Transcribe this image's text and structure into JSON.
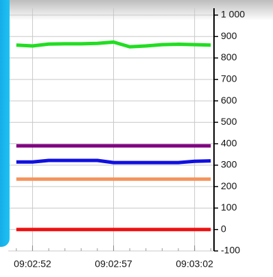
{
  "chart_data": {
    "type": "line",
    "x": [
      "09:02:51",
      "09:02:52",
      "09:02:53",
      "09:02:54",
      "09:02:55",
      "09:02:56",
      "09:02:57",
      "09:02:58",
      "09:02:59",
      "09:03:00",
      "09:03:01",
      "09:03:02",
      "09:03:03"
    ],
    "xlim": [
      "09:02:50.5",
      "09:03:03.2"
    ],
    "xticks": [
      "09:02:52",
      "09:02:57",
      "09:03:02"
    ],
    "ylim": [
      -100,
      1000
    ],
    "yticks": [
      -100,
      0,
      100,
      200,
      300,
      400,
      500,
      600,
      700,
      800,
      900,
      {
        "value": 1000,
        "label": "1 000"
      }
    ],
    "grid": true,
    "series": [
      {
        "color": "#22dd22",
        "values": [
          860,
          856,
          865,
          866,
          866,
          868,
          874,
          852,
          856,
          862,
          864,
          862,
          860
        ]
      },
      {
        "color": "#800080",
        "values": [
          390,
          390,
          390,
          390,
          390,
          390,
          390,
          390,
          390,
          390,
          390,
          390,
          390
        ]
      },
      {
        "color": "#1010e0",
        "values": [
          315,
          315,
          322,
          322,
          322,
          322,
          312,
          312,
          312,
          312,
          312,
          318,
          320
        ]
      },
      {
        "color": "#f4945c",
        "values": [
          235,
          235,
          235,
          235,
          235,
          235,
          235,
          235,
          235,
          235,
          235,
          235,
          235
        ]
      },
      {
        "color": "#ee1111",
        "values": [
          0,
          0,
          0,
          0,
          0,
          0,
          0,
          0,
          0,
          0,
          0,
          0,
          0
        ]
      }
    ]
  }
}
